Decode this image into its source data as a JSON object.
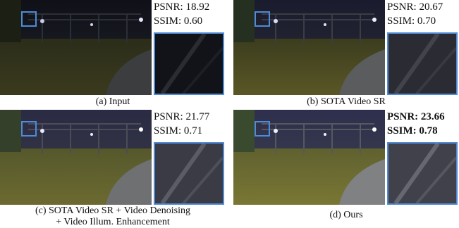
{
  "panels": [
    {
      "id": "input",
      "caption": "(a) Input",
      "psnr": "PSNR: 18.92",
      "ssim": "SSIM: 0.60",
      "bold": false,
      "brightness": 0.55
    },
    {
      "id": "sota-sr",
      "caption": "(b) SOTA Video SR",
      "psnr": "PSNR: 20.67",
      "ssim": "SSIM: 0.70",
      "bold": false,
      "brightness": 0.8
    },
    {
      "id": "sota-sr-denoise-enhance",
      "caption_line1": "(c) SOTA Video SR + Video Denoising",
      "caption_line2": "+ Video Illum. Enhancement",
      "psnr": "PSNR: 21.77",
      "ssim": "SSIM: 0.71",
      "bold": false,
      "brightness": 0.95
    },
    {
      "id": "ours",
      "caption": "(d) Ours",
      "psnr": "PSNR: 23.66",
      "ssim": "SSIM: 0.78",
      "bold": true,
      "brightness": 1.0
    }
  ],
  "colors": {
    "roi_box": "#4f8bd6",
    "grass": "#6b6a2a",
    "path": "#8a8a80",
    "sky": "#1d1f3a"
  }
}
